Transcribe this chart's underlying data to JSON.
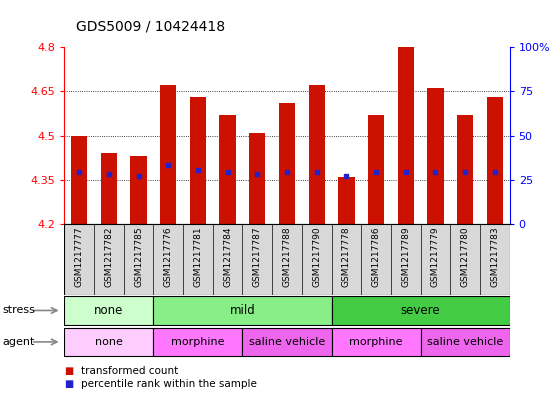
{
  "title": "GDS5009 / 10424418",
  "samples": [
    "GSM1217777",
    "GSM1217782",
    "GSM1217785",
    "GSM1217776",
    "GSM1217781",
    "GSM1217784",
    "GSM1217787",
    "GSM1217788",
    "GSM1217790",
    "GSM1217778",
    "GSM1217786",
    "GSM1217789",
    "GSM1217779",
    "GSM1217780",
    "GSM1217783"
  ],
  "bar_tops": [
    4.5,
    4.44,
    4.43,
    4.67,
    4.63,
    4.57,
    4.51,
    4.61,
    4.67,
    4.36,
    4.57,
    4.82,
    4.66,
    4.57,
    4.63
  ],
  "bar_bottom": 4.2,
  "blue_values": [
    4.375,
    4.368,
    4.362,
    4.4,
    4.382,
    4.378,
    4.37,
    4.378,
    4.378,
    4.362,
    4.378,
    4.378,
    4.378,
    4.378,
    4.378
  ],
  "ylim": [
    4.2,
    4.8
  ],
  "yticks": [
    4.2,
    4.35,
    4.5,
    4.65,
    4.8
  ],
  "ytick_labels": [
    "4.2",
    "4.35",
    "4.5",
    "4.65",
    "4.8"
  ],
  "y2ticks": [
    0,
    25,
    50,
    75,
    100
  ],
  "y2tick_labels": [
    "0",
    "25",
    "50",
    "75",
    "100%"
  ],
  "bar_color": "#cc1100",
  "blue_color": "#2222cc",
  "stress_groups": [
    {
      "label": "none",
      "start": 0,
      "end": 3,
      "color": "#ccffcc"
    },
    {
      "label": "mild",
      "start": 3,
      "end": 9,
      "color": "#88ee88"
    },
    {
      "label": "severe",
      "start": 9,
      "end": 15,
      "color": "#44cc44"
    }
  ],
  "agent_groups": [
    {
      "label": "none",
      "start": 0,
      "end": 3,
      "color": "#ffccff"
    },
    {
      "label": "morphine",
      "start": 3,
      "end": 6,
      "color": "#ff77ff"
    },
    {
      "label": "saline vehicle",
      "start": 6,
      "end": 9,
      "color": "#ee66ee"
    },
    {
      "label": "morphine",
      "start": 9,
      "end": 12,
      "color": "#ff77ff"
    },
    {
      "label": "saline vehicle",
      "start": 12,
      "end": 15,
      "color": "#ee66ee"
    }
  ],
  "cat_bg": "#d8d8d8",
  "legend_items": [
    {
      "label": "transformed count",
      "color": "#cc1100"
    },
    {
      "label": "percentile rank within the sample",
      "color": "#2222cc"
    }
  ]
}
